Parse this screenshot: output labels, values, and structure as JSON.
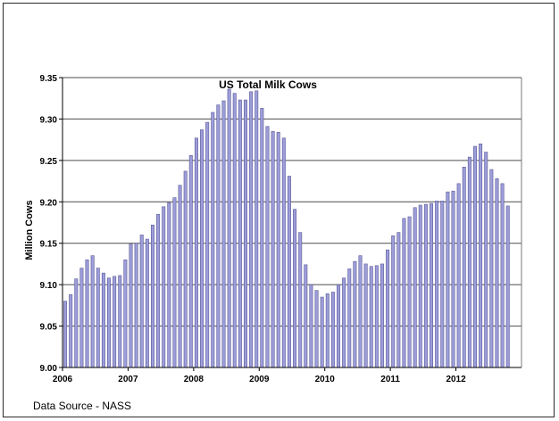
{
  "source_note": "Data Source - NASS",
  "colors": {
    "bar_fill": "#9d9dd9",
    "bar_stroke": "#5a5a9a",
    "gridline": "#4d4d4d",
    "axis": "#000000"
  },
  "chart_data": {
    "type": "bar",
    "title": "US Total Milk Cows",
    "xlabel": "",
    "ylabel": "Million Cows",
    "ylim": [
      9.0,
      9.35
    ],
    "yticks": [
      9.0,
      9.05,
      9.1,
      9.15,
      9.2,
      9.25,
      9.3,
      9.35
    ],
    "ytick_labels": [
      "9.00",
      "9.05",
      "9.10",
      "9.15",
      "9.20",
      "9.25",
      "9.30",
      "9.35"
    ],
    "xtick_labels": [
      "2006",
      "2007",
      "2008",
      "2009",
      "2010",
      "2011",
      "2012"
    ],
    "grid": true,
    "legend": "none",
    "series": [
      {
        "values": [
          9.08,
          9.088,
          9.107,
          9.12,
          9.13,
          9.135,
          9.12,
          9.114,
          9.108,
          9.11,
          9.111,
          9.13,
          9.149,
          9.15,
          9.16,
          9.155,
          9.172,
          9.185,
          9.194,
          9.199,
          9.205,
          9.22,
          9.237,
          9.256,
          9.277,
          9.287,
          9.296,
          9.308,
          9.317,
          9.322,
          9.336,
          9.331,
          9.323,
          9.323,
          9.333,
          9.334,
          9.313,
          9.291,
          9.285,
          9.284,
          9.277,
          9.231,
          9.191,
          9.163,
          9.124,
          9.1,
          9.093,
          9.085,
          9.089,
          9.091,
          9.1,
          9.108,
          9.119,
          9.128,
          9.135,
          9.125,
          9.122,
          9.123,
          9.125,
          9.142,
          9.159,
          9.163,
          9.18,
          9.182,
          9.193,
          9.196,
          9.197,
          9.198,
          9.201,
          9.201,
          9.212,
          9.213,
          9.222,
          9.242,
          9.254,
          9.267,
          9.27,
          9.26,
          9.239,
          9.228,
          9.222,
          9.195
        ]
      }
    ]
  }
}
